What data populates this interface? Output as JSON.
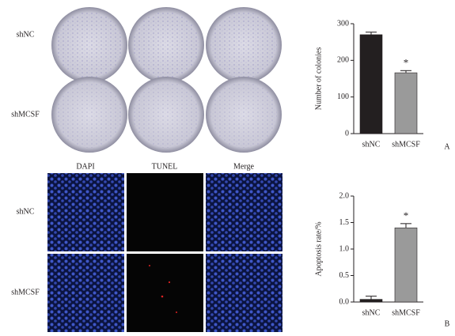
{
  "panel_a": {
    "rows": [
      "shNC",
      "shMCSF"
    ]
  },
  "panel_b": {
    "columns": [
      "DAPI",
      "TUNEL",
      "Merge"
    ],
    "rows": [
      "shNC",
      "shMCSF"
    ]
  },
  "chart_data": [
    {
      "type": "bar",
      "panel_label": "A",
      "y_label": "Number of colonies",
      "categories": [
        "shNC",
        "shMCSF"
      ],
      "values": [
        270,
        166
      ],
      "errors": [
        7,
        6
      ],
      "colors": [
        "#231f20",
        "#9a9a9a"
      ],
      "annotations": [
        {
          "category": "shMCSF",
          "text": "*"
        }
      ],
      "ylim": [
        0,
        300
      ],
      "yticks": [
        0,
        100,
        200,
        300
      ]
    },
    {
      "type": "bar",
      "panel_label": "B",
      "y_label": "Apoptosis rate/%",
      "categories": [
        "shNC",
        "shMCSF"
      ],
      "values": [
        0.05,
        1.4
      ],
      "errors": [
        0.06,
        0.08
      ],
      "colors": [
        "#231f20",
        "#9a9a9a"
      ],
      "annotations": [
        {
          "category": "shMCSF",
          "text": "*"
        }
      ],
      "ylim": [
        0,
        2
      ],
      "yticks": [
        {
          "value": 0,
          "label": "0.0"
        },
        0.5,
        {
          "value": 1,
          "label": "1.0"
        },
        1.5,
        {
          "value": 2,
          "label": "2.0"
        }
      ]
    }
  ]
}
